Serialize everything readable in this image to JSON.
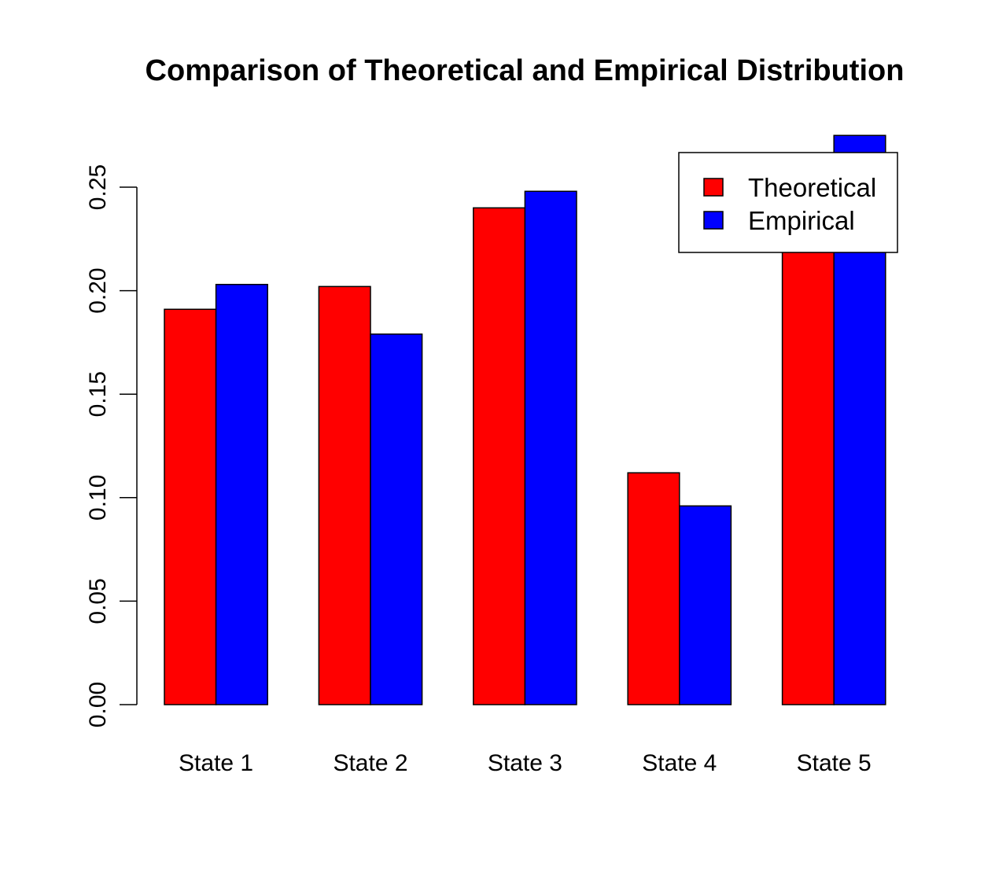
{
  "chart_data": {
    "type": "bar",
    "title": "Comparison of Theoretical and Empirical Distribution",
    "xlabel": "",
    "ylabel": "",
    "categories": [
      "State 1",
      "State 2",
      "State 3",
      "State 4",
      "State 5"
    ],
    "series": [
      {
        "name": "Theoretical",
        "color": "#ff0000",
        "values": [
          0.191,
          0.202,
          0.24,
          0.112,
          0.23
        ]
      },
      {
        "name": "Empirical",
        "color": "#0000ff",
        "values": [
          0.203,
          0.179,
          0.248,
          0.096,
          0.275
        ]
      }
    ],
    "ylim": [
      0,
      0.25
    ],
    "yticks": [
      "0.00",
      "0.05",
      "0.10",
      "0.15",
      "0.20",
      "0.25"
    ],
    "grid": false,
    "legend_position": "top-right"
  }
}
